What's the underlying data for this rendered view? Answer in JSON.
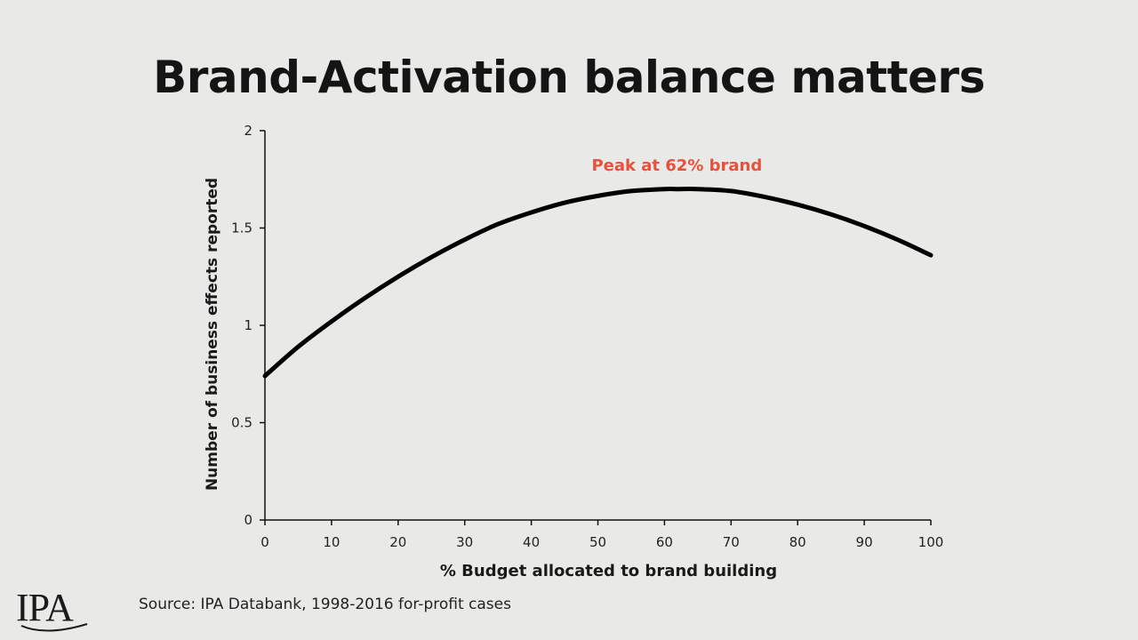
{
  "slide": {
    "title": "Brand-Activation balance matters",
    "source": "Source: IPA Databank, 1998-2016 for-profit cases",
    "logo_text": "IPA"
  },
  "colors": {
    "background": "#e9eae8",
    "curve": "#000000",
    "annotation": "#e8503a",
    "axis": "#111111"
  },
  "chart_data": {
    "type": "line",
    "xlabel": "% Budget allocated to brand building",
    "ylabel": "Number of business effects reported",
    "xlim": [
      0,
      100
    ],
    "ylim": [
      0,
      2
    ],
    "xticks": [
      0,
      10,
      20,
      30,
      40,
      50,
      60,
      70,
      80,
      90,
      100
    ],
    "yticks": [
      0,
      0.5,
      1,
      1.5,
      2
    ],
    "ytick_labels": [
      "0",
      "0.5",
      "1",
      "1.5",
      "2"
    ],
    "grid": false,
    "series": [
      {
        "x": [
          0,
          5,
          10,
          15,
          20,
          25,
          30,
          35,
          40,
          45,
          50,
          55,
          60,
          62,
          65,
          70,
          75,
          80,
          85,
          90,
          95,
          100
        ],
        "y": [
          0.74,
          0.89,
          1.02,
          1.14,
          1.25,
          1.35,
          1.44,
          1.52,
          1.58,
          1.63,
          1.665,
          1.69,
          1.7,
          1.7,
          1.7,
          1.69,
          1.66,
          1.62,
          1.57,
          1.51,
          1.44,
          1.36
        ]
      }
    ],
    "annotations": [
      {
        "text": "Peak at 62% brand",
        "x": 62,
        "y": 1.8
      }
    ]
  }
}
